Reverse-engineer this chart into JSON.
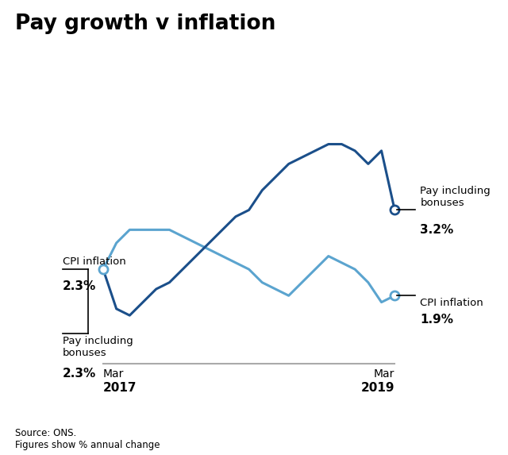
{
  "title": "Pay growth v inflation",
  "subtitle_source": "Source: ONS.",
  "subtitle_figures": "Figures show % annual change",
  "pay_color": "#1b4f8a",
  "cpi_color": "#5ba4cf",
  "background_color": "#ffffff",
  "pa_box_color": "#cc2200",
  "pay_data": [
    2.3,
    1.7,
    1.6,
    1.8,
    2.0,
    2.1,
    2.3,
    2.5,
    2.7,
    2.9,
    3.1,
    3.2,
    3.5,
    3.7,
    3.9,
    4.0,
    4.1,
    4.2,
    4.2,
    4.1,
    3.9,
    4.1,
    3.2
  ],
  "cpi_data": [
    2.3,
    2.7,
    2.9,
    2.9,
    2.9,
    2.9,
    2.8,
    2.7,
    2.6,
    2.5,
    2.4,
    2.3,
    2.1,
    2.0,
    1.9,
    2.1,
    2.3,
    2.5,
    2.4,
    2.3,
    2.1,
    1.8,
    1.9
  ],
  "annot_left_cpi_label": "CPI inflation",
  "annot_left_cpi_value": "2.3%",
  "annot_left_pay_label": "Pay including\nbonuses",
  "annot_left_pay_value": "2.3%",
  "annot_right_pay_label": "Pay including\nbonuses",
  "annot_right_pay_value": "3.2%",
  "annot_right_cpi_label": "CPI inflation",
  "annot_right_cpi_value": "1.9%",
  "ylim_min": 1.0,
  "ylim_max": 4.8
}
